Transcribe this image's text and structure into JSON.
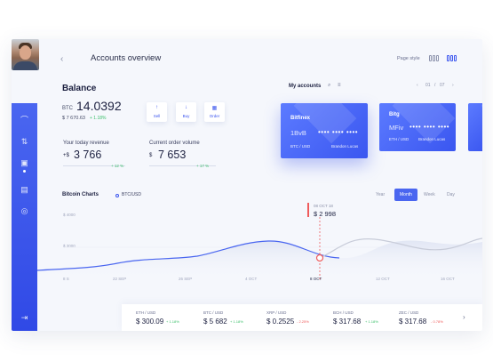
{
  "header": {
    "title": "Accounts overview",
    "page_style_label": "Page style",
    "back_icon": "chevron-left-icon"
  },
  "balance": {
    "label": "Balance",
    "currency": "BTC",
    "value": "14.0392",
    "usd": "$ 7 670.63",
    "usd_change": "+ 1.18%"
  },
  "actions": [
    {
      "label": "Sell",
      "icon": "arrow-up-icon"
    },
    {
      "label": "Buy",
      "icon": "arrow-down-icon"
    },
    {
      "label": "Order",
      "icon": "calendar-icon"
    }
  ],
  "metrics": {
    "revenue": {
      "label": "Your  today revenue",
      "prefix": "+$",
      "value": "3 766",
      "change": "+ 12 %"
    },
    "volume": {
      "label": "Current order volume",
      "prefix": "$",
      "value": "7 653",
      "change": "+ 17 %"
    }
  },
  "accounts": {
    "label": "My accounts",
    "pager": {
      "current": "01",
      "sep": "/",
      "total": "07"
    },
    "cards": [
      {
        "name": "Bitfinex",
        "num1": "1BvB",
        "num2": "•••• •••• ••••",
        "pair": "BTC / USD",
        "owner": "Brandon Lucas"
      },
      {
        "name": "Bitg",
        "num1": "MFiv",
        "num2": "•••• •••• ••••",
        "pair": "ETH / USD",
        "owner": "Brandon Lucas"
      }
    ]
  },
  "chart": {
    "title": "Bitcoin Charts",
    "pair": "BTC/USD",
    "periods": [
      "Year",
      "Month",
      "Week",
      "Day"
    ],
    "active_period": "Month",
    "y_labels": [
      "$ 4000",
      "$ 3000"
    ],
    "x_labels": [
      "8 S",
      "22 SEP",
      "26 SEP",
      "4 OCT",
      "8 OCT",
      "12 OCT",
      "16 OCT"
    ],
    "tooltip": {
      "date": "08 OCT 18",
      "value": "$ 2 998"
    },
    "accent": "#3b55ee",
    "marker_color": "#ef5b5b"
  },
  "ticker": [
    {
      "pair": "ETH / USD",
      "value": "$ 300.09",
      "change": "+ 1.18%",
      "dir": "up"
    },
    {
      "pair": "BTC / USD",
      "value": "$ 5 682",
      "change": "+ 1.18%",
      "dir": "up"
    },
    {
      "pair": "XRP / USD",
      "value": "$ 0.2525",
      "change": "- 2.25%",
      "dir": "down"
    },
    {
      "pair": "BCH / USD",
      "value": "$ 317.68",
      "change": "+ 1.18%",
      "dir": "up"
    },
    {
      "pair": "ZEC / USD",
      "value": "$ 317.68",
      "change": "- 0.78%",
      "dir": "down"
    }
  ]
}
